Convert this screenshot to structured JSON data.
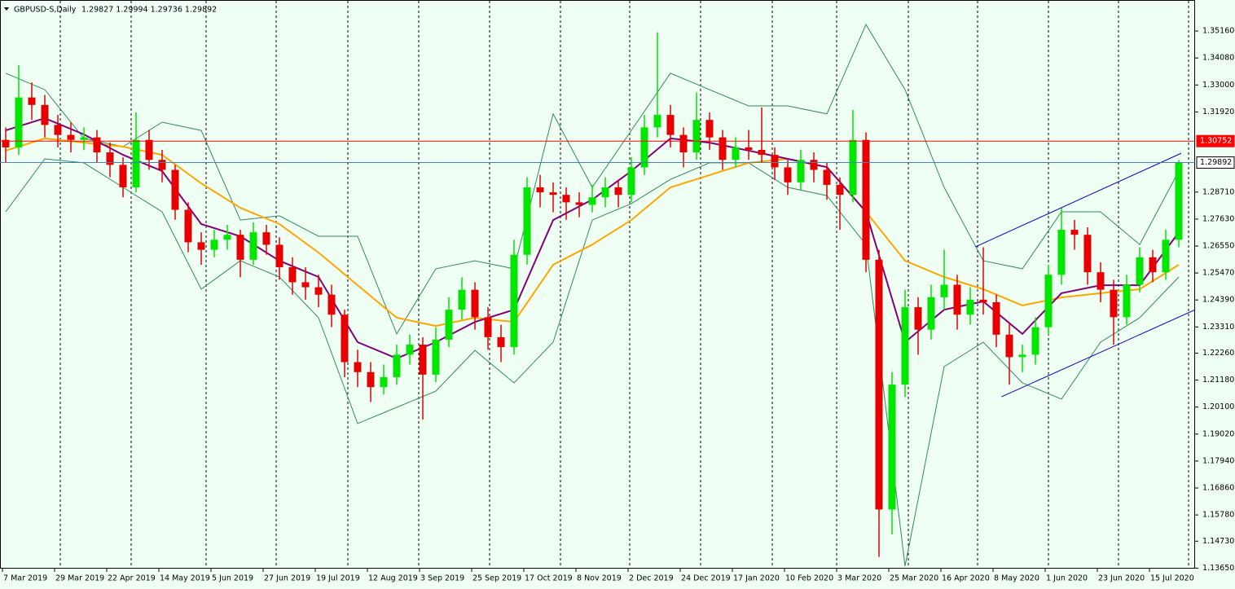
{
  "chart_data": {
    "type": "candlestick",
    "title": "GBPUSD-S,Daily",
    "quote": "1.29827 1.29994 1.29736 1.29892",
    "up_color": "#00e600",
    "down_color": "#e60000",
    "x_labels": [
      "7 Mar 2019",
      "29 Mar 2019",
      "22 Apr 2019",
      "14 May 2019",
      "5 Jun 2019",
      "27 Jun 2019",
      "19 Jul 2019",
      "12 Aug 2019",
      "3 Sep 2019",
      "25 Sep 2019",
      "17 Oct 2019",
      "8 Nov 2019",
      "2 Dec 2019",
      "24 Dec 2019",
      "17 Jan 2020",
      "10 Feb 2020",
      "3 Mar 2020",
      "25 Mar 2020",
      "16 Apr 2020",
      "8 May 2020",
      "1 Jun 2020",
      "23 Jun 2020",
      "15 Jul 2020"
    ],
    "candles": [
      [
        1.308,
        1.313,
        1.299,
        1.305
      ],
      [
        1.305,
        1.338,
        1.302,
        1.325
      ],
      [
        1.325,
        1.331,
        1.316,
        1.322
      ],
      [
        1.322,
        1.326,
        1.309,
        1.314
      ],
      [
        1.314,
        1.318,
        1.305,
        1.31
      ],
      [
        1.31,
        1.315,
        1.303,
        1.308
      ],
      [
        1.308,
        1.313,
        1.304,
        1.309
      ],
      [
        1.309,
        1.312,
        1.299,
        1.303
      ],
      [
        1.303,
        1.307,
        1.293,
        1.298
      ],
      [
        1.298,
        1.301,
        1.285,
        1.289
      ],
      [
        1.289,
        1.319,
        1.287,
        1.308
      ],
      [
        1.308,
        1.312,
        1.296,
        1.3
      ],
      [
        1.3,
        1.304,
        1.291,
        1.296
      ],
      [
        1.296,
        1.298,
        1.276,
        1.28
      ],
      [
        1.28,
        1.283,
        1.263,
        1.267
      ],
      [
        1.267,
        1.271,
        1.258,
        1.264
      ],
      [
        1.264,
        1.272,
        1.261,
        1.268
      ],
      [
        1.268,
        1.274,
        1.264,
        1.27
      ],
      [
        1.27,
        1.272,
        1.253,
        1.26
      ],
      [
        1.26,
        1.275,
        1.258,
        1.271
      ],
      [
        1.271,
        1.274,
        1.262,
        1.266
      ],
      [
        1.266,
        1.269,
        1.252,
        1.257
      ],
      [
        1.257,
        1.261,
        1.246,
        1.251
      ],
      [
        1.251,
        1.257,
        1.244,
        1.249
      ],
      [
        1.249,
        1.254,
        1.241,
        1.246
      ],
      [
        1.246,
        1.25,
        1.233,
        1.238
      ],
      [
        1.238,
        1.24,
        1.213,
        1.219
      ],
      [
        1.219,
        1.224,
        1.209,
        1.215
      ],
      [
        1.215,
        1.219,
        1.203,
        1.209
      ],
      [
        1.209,
        1.218,
        1.206,
        1.213
      ],
      [
        1.213,
        1.226,
        1.21,
        1.222
      ],
      [
        1.222,
        1.23,
        1.218,
        1.226
      ],
      [
        1.226,
        1.229,
        1.196,
        1.214
      ],
      [
        1.214,
        1.233,
        1.211,
        1.228
      ],
      [
        1.228,
        1.245,
        1.225,
        1.24
      ],
      [
        1.24,
        1.253,
        1.236,
        1.248
      ],
      [
        1.248,
        1.251,
        1.232,
        1.237
      ],
      [
        1.237,
        1.241,
        1.224,
        1.229
      ],
      [
        1.229,
        1.234,
        1.219,
        1.225
      ],
      [
        1.225,
        1.268,
        1.222,
        1.262
      ],
      [
        1.262,
        1.293,
        1.258,
        1.289
      ],
      [
        1.289,
        1.294,
        1.281,
        1.287
      ],
      [
        1.287,
        1.291,
        1.279,
        1.286
      ],
      [
        1.286,
        1.289,
        1.276,
        1.283
      ],
      [
        1.283,
        1.287,
        1.277,
        1.282
      ],
      [
        1.282,
        1.29,
        1.279,
        1.285
      ],
      [
        1.285,
        1.293,
        1.281,
        1.289
      ],
      [
        1.289,
        1.292,
        1.281,
        1.286
      ],
      [
        1.286,
        1.301,
        1.283,
        1.297
      ],
      [
        1.297,
        1.318,
        1.294,
        1.313
      ],
      [
        1.313,
        1.351,
        1.309,
        1.318
      ],
      [
        1.318,
        1.322,
        1.305,
        1.31
      ],
      [
        1.31,
        1.313,
        1.297,
        1.303
      ],
      [
        1.303,
        1.327,
        1.3,
        1.316
      ],
      [
        1.316,
        1.319,
        1.304,
        1.309
      ],
      [
        1.309,
        1.312,
        1.296,
        1.3
      ],
      [
        1.3,
        1.309,
        1.297,
        1.305
      ],
      [
        1.305,
        1.312,
        1.3,
        1.304
      ],
      [
        1.304,
        1.321,
        1.299,
        1.302
      ],
      [
        1.302,
        1.305,
        1.292,
        1.297
      ],
      [
        1.297,
        1.3,
        1.286,
        1.291
      ],
      [
        1.291,
        1.304,
        1.288,
        1.3
      ],
      [
        1.3,
        1.303,
        1.291,
        1.296
      ],
      [
        1.296,
        1.299,
        1.284,
        1.29
      ],
      [
        1.29,
        1.293,
        1.272,
        1.286
      ],
      [
        1.286,
        1.32,
        1.283,
        1.308
      ],
      [
        1.308,
        1.311,
        1.255,
        1.26
      ],
      [
        1.26,
        1.264,
        1.141,
        1.16
      ],
      [
        1.16,
        1.215,
        1.15,
        1.21
      ],
      [
        1.21,
        1.248,
        1.205,
        1.241
      ],
      [
        1.241,
        1.245,
        1.222,
        1.232
      ],
      [
        1.232,
        1.25,
        1.228,
        1.245
      ],
      [
        1.245,
        1.264,
        1.24,
        1.25
      ],
      [
        1.25,
        1.254,
        1.232,
        1.238
      ],
      [
        1.238,
        1.249,
        1.234,
        1.244
      ],
      [
        1.244,
        1.265,
        1.238,
        1.243
      ],
      [
        1.243,
        1.246,
        1.225,
        1.23
      ],
      [
        1.23,
        1.235,
        1.21,
        1.221
      ],
      [
        1.221,
        1.226,
        1.215,
        1.222
      ],
      [
        1.222,
        1.237,
        1.218,
        1.233
      ],
      [
        1.233,
        1.258,
        1.23,
        1.254
      ],
      [
        1.254,
        1.281,
        1.25,
        1.272
      ],
      [
        1.272,
        1.276,
        1.264,
        1.27
      ],
      [
        1.27,
        1.273,
        1.25,
        1.255
      ],
      [
        1.255,
        1.259,
        1.243,
        1.248
      ],
      [
        1.248,
        1.252,
        1.226,
        1.237
      ],
      [
        1.237,
        1.254,
        1.234,
        1.25
      ],
      [
        1.25,
        1.265,
        1.247,
        1.261
      ],
      [
        1.261,
        1.264,
        1.251,
        1.255
      ],
      [
        1.255,
        1.272,
        1.252,
        1.268
      ],
      [
        1.268,
        1.3,
        1.265,
        1.29892
      ]
    ],
    "indicator_x": [
      0,
      3,
      6,
      9,
      12,
      15,
      18,
      21,
      24,
      27,
      30,
      33,
      36,
      39,
      42,
      45,
      48,
      51,
      54,
      57,
      60,
      63,
      66,
      69,
      72,
      75,
      78,
      81,
      84,
      87,
      90
    ],
    "indicators": [
      {
        "color": "#2e8b57",
        "values": [
          1.3347,
          1.3281,
          1.3086,
          1.3053,
          1.3151,
          1.3118,
          1.2759,
          1.2776,
          1.2694,
          1.2694,
          1.2303,
          1.2564,
          1.2596,
          1.2564,
          1.3184,
          1.289,
          1.3118,
          1.3347,
          1.3281,
          1.3216,
          1.3216,
          1.3184,
          1.3542,
          1.3281,
          1.289,
          1.2596,
          1.2564,
          1.2792,
          1.2792,
          1.2661,
          1.2955
        ]
      },
      {
        "color": "#2e8b57",
        "values": [
          1.2792,
          1.3004,
          1.2988,
          1.289,
          1.2792,
          1.2482,
          1.2596,
          1.2531,
          1.2368,
          1.1944,
          1.2009,
          1.2074,
          1.2237,
          1.2107,
          1.227,
          1.2759,
          1.2825,
          1.2922,
          1.2988,
          1.2988,
          1.289,
          1.2857,
          1.2661,
          1.1373,
          1.2172,
          1.227,
          1.2107,
          1.2042,
          1.227,
          1.2368,
          1.2531
        ]
      },
      {
        "color": "#ffa500",
        "values": [
          1.3037,
          1.3086,
          1.3069,
          1.3053,
          1.302,
          1.2906,
          1.2808,
          1.2743,
          1.2629,
          1.2498,
          1.2368,
          1.2335,
          1.2368,
          1.2351,
          1.258,
          1.2661,
          1.2759,
          1.289,
          1.2939,
          1.2988,
          1.3004,
          1.2971,
          1.2792,
          1.2596,
          1.2531,
          1.2482,
          1.2417,
          1.2449,
          1.2466,
          1.2482,
          1.258
        ]
      },
      {
        "color": "#800080",
        "values": [
          1.3118,
          1.3167,
          1.3102,
          1.302,
          1.2955,
          1.2743,
          1.2694,
          1.2596,
          1.2531,
          1.227,
          1.2205,
          1.227,
          1.2351,
          1.24,
          1.2759,
          1.2841,
          1.2955,
          1.3086,
          1.3069,
          1.3037,
          1.3004,
          1.2971,
          1.2792,
          1.227,
          1.24,
          1.2433,
          1.2303,
          1.2466,
          1.2498,
          1.2498,
          1.271
        ]
      }
    ],
    "channels": [
      {
        "color": "#0000cd",
        "x": [
          74.4,
          90.2
        ],
        "values": [
          1.2652,
          1.3027
        ]
      },
      {
        "color": "#0000cd",
        "x": [
          76.4,
          91.25
        ],
        "values": [
          1.2051,
          1.24
        ]
      }
    ],
    "hlines": [
      {
        "value": 1.30752,
        "color": "#ff0000"
      },
      {
        "value": 1.29892,
        "color": "#4682b4"
      }
    ],
    "ylim": [
      1.1363,
      1.3637
    ],
    "yticks": [
      {
        "value": 1.3516,
        "label": "1.35160"
      },
      {
        "value": 1.3408,
        "label": "1.34080"
      },
      {
        "value": 1.33,
        "label": "1.33000"
      },
      {
        "value": 1.3192,
        "label": "1.31920"
      },
      {
        "value": 1.2871,
        "label": "1.28710"
      },
      {
        "value": 1.2763,
        "label": "1.27630"
      },
      {
        "value": 1.2655,
        "label": "1.26550"
      },
      {
        "value": 1.2547,
        "label": "1.25470"
      },
      {
        "value": 1.2439,
        "label": "1.24390"
      },
      {
        "value": 1.2331,
        "label": "1.23310"
      },
      {
        "value": 1.2226,
        "label": "1.22260"
      },
      {
        "value": 1.2118,
        "label": "1.21180"
      },
      {
        "value": 1.201,
        "label": "1.20100"
      },
      {
        "value": 1.1902,
        "label": "1.19020"
      },
      {
        "value": 1.1794,
        "label": "1.17940"
      },
      {
        "value": 1.1686,
        "label": "1.16860"
      },
      {
        "value": 1.1578,
        "label": "1.15780"
      },
      {
        "value": 1.1473,
        "label": "1.14730"
      },
      {
        "value": 1.1365,
        "label": "1.13650"
      }
    ]
  }
}
